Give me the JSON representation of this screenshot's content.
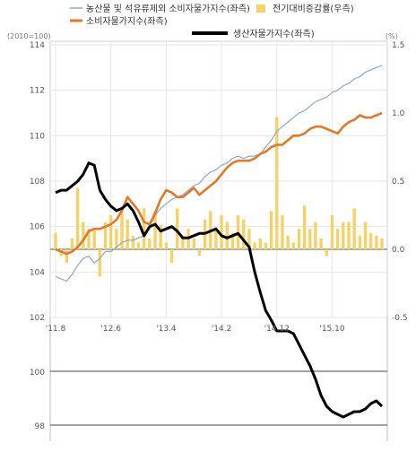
{
  "chart_data": {
    "type": "line",
    "legend": [
      {
        "name": "농산물 및 석유류제외 소비자물가지수(좌측)",
        "color": "#8ea7c9",
        "kind": "line"
      },
      {
        "name": "전기대비증감률(우측)",
        "color": "#f4d26a",
        "kind": "bar"
      },
      {
        "name": "소비자물가지수(좌측)",
        "color": "#e07a2a",
        "kind": "line"
      },
      {
        "name": "생산자물가지수(좌측)",
        "color": "#000000",
        "kind": "line"
      }
    ],
    "left_axis_unit": "(2010=100)",
    "right_axis_unit": "(%)",
    "left_ticks": [
      "114",
      "112",
      "110",
      "108",
      "106",
      "104",
      "102"
    ],
    "left_extra_ticks": [
      "100",
      "98"
    ],
    "right_ticks": [
      "1.5",
      "1.0",
      "0.5",
      "0.0",
      "-0.5"
    ],
    "x_ticks": [
      "'11.8",
      "'12.6",
      "'13.4",
      "'14.2",
      "'14.12",
      "'15.10"
    ],
    "ylim_left": [
      97.6,
      114
    ],
    "ylim_right": [
      -0.5,
      1.5
    ],
    "x_range": [
      0,
      59
    ],
    "x_tick_index": [
      0,
      10,
      20,
      30,
      40,
      50
    ],
    "series": [
      {
        "name": "농산물 및 석유류제외 소비자물가지수(좌측)",
        "axis": "left",
        "values": [
          103.8,
          103.7,
          103.6,
          103.9,
          104.3,
          104.6,
          104.7,
          104.4,
          104.6,
          104.9,
          104.9,
          105.1,
          105.3,
          105.4,
          105.4,
          105.5,
          105.6,
          106.0,
          106.5,
          106.8,
          107.0,
          107.2,
          107.3,
          107.4,
          107.6,
          107.8,
          107.9,
          108.2,
          108.4,
          108.5,
          108.7,
          108.8,
          109.0,
          109.1,
          109.0,
          109.1,
          109.1,
          109.2,
          109.5,
          109.8,
          110.2,
          110.4,
          110.6,
          110.8,
          111.0,
          111.1,
          111.3,
          111.5,
          111.6,
          111.7,
          111.9,
          112.0,
          112.2,
          112.3,
          112.5,
          112.6,
          112.8,
          112.9,
          113.0,
          113.1
        ]
      },
      {
        "name": "소비자물가지수(좌측)",
        "axis": "left",
        "values": [
          105.0,
          104.9,
          104.8,
          104.9,
          105.1,
          105.4,
          105.8,
          105.9,
          105.9,
          106.0,
          106.1,
          106.3,
          106.7,
          107.3,
          107.0,
          106.7,
          106.2,
          106.1,
          106.6,
          107.2,
          107.6,
          107.5,
          107.3,
          107.3,
          107.5,
          107.7,
          107.4,
          107.6,
          107.8,
          108.0,
          108.3,
          108.6,
          108.8,
          108.9,
          108.9,
          108.9,
          109.0,
          109.2,
          109.3,
          109.5,
          109.6,
          109.6,
          109.8,
          110.0,
          110.0,
          110.1,
          110.3,
          110.4,
          110.4,
          110.3,
          110.2,
          110.1,
          110.4,
          110.6,
          110.7,
          110.9,
          110.8,
          110.8,
          110.9,
          111.0
        ]
      },
      {
        "name": "생산자물가지수(좌측)",
        "axis": "left",
        "values": [
          107.5,
          107.6,
          107.6,
          107.8,
          108.0,
          108.3,
          108.8,
          108.7,
          107.6,
          107.2,
          106.9,
          106.7,
          106.8,
          107.0,
          106.7,
          106.2,
          105.6,
          106.0,
          106.1,
          105.8,
          105.9,
          106.0,
          105.8,
          105.5,
          105.5,
          105.6,
          105.7,
          105.7,
          105.8,
          105.9,
          105.6,
          105.5,
          105.6,
          105.7,
          105.4,
          105.1,
          104.0,
          103.1,
          102.3,
          101.9,
          101.5,
          101.5,
          101.5,
          101.4,
          101.0,
          100.6,
          100.2,
          99.7,
          99.1,
          98.7,
          98.5,
          98.4,
          98.3,
          98.4,
          98.5,
          98.5,
          98.6,
          98.8,
          98.9,
          98.7
        ]
      },
      {
        "name": "전기대비증감률(우측)",
        "axis": "right",
        "type": "bar",
        "values": [
          0.12,
          -0.05,
          -0.1,
          0.08,
          0.45,
          0.2,
          0.15,
          0.14,
          -0.2,
          0.2,
          0.25,
          0.15,
          0.3,
          0.22,
          0.1,
          0.05,
          0.3,
          0.08,
          0.28,
          0.18,
          0.05,
          -0.1,
          0.3,
          0.1,
          0.15,
          0.08,
          -0.05,
          0.22,
          0.28,
          0.15,
          0.25,
          0.2,
          0.12,
          0.25,
          0.22,
          0.15,
          0.05,
          0.08,
          0.05,
          0.28,
          0.97,
          0.25,
          0.1,
          0.05,
          0.15,
          0.32,
          0.15,
          0.2,
          0.08,
          -0.05,
          0.25,
          0.15,
          0.2,
          0.2,
          0.3,
          0.1,
          0.2,
          0.12,
          0.1,
          0.08
        ]
      }
    ]
  }
}
